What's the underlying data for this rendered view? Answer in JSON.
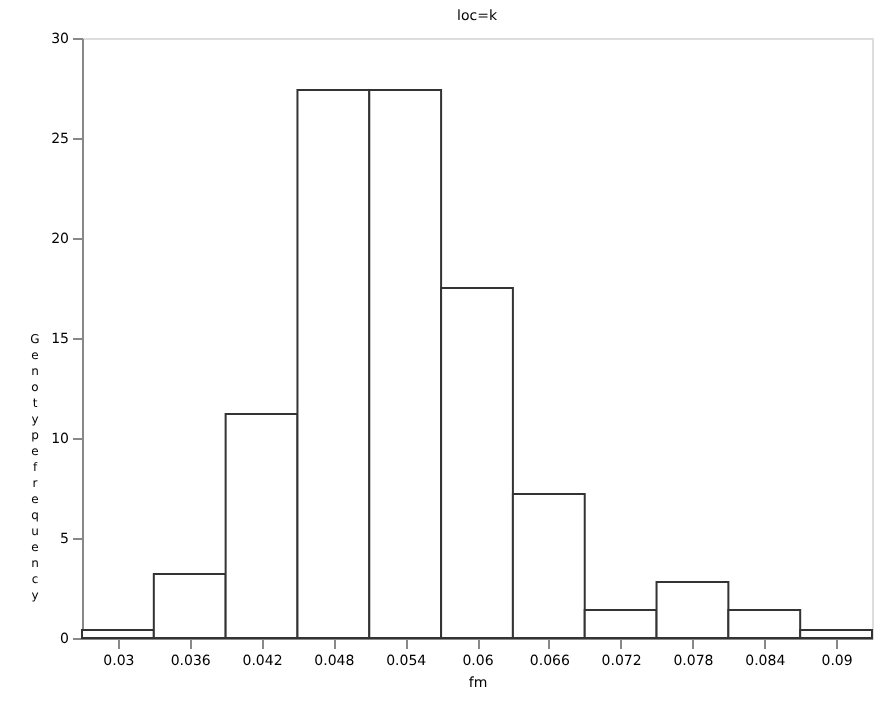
{
  "chart_data": {
    "type": "histogram",
    "title": "loc=k",
    "xlabel": "fm",
    "ylabel": "Genotype frequency",
    "bins": [
      0.027,
      0.033,
      0.039,
      0.045,
      0.051,
      0.057,
      0.063,
      0.069,
      0.075,
      0.081,
      0.087,
      0.093
    ],
    "values": [
      0.4,
      3.2,
      11.2,
      27.4,
      27.4,
      17.5,
      7.2,
      1.4,
      2.8,
      1.4,
      0.4
    ],
    "color": "#ffffff",
    "xlim": [
      0.027,
      0.093
    ],
    "xticks": [
      0.03,
      0.036,
      0.042,
      0.048,
      0.054,
      0.06,
      0.066,
      0.072,
      0.078,
      0.084,
      0.09
    ],
    "ylim": [
      0,
      30
    ],
    "yticks": [
      0,
      5,
      10,
      15,
      20,
      25,
      30
    ],
    "grid": false
  }
}
